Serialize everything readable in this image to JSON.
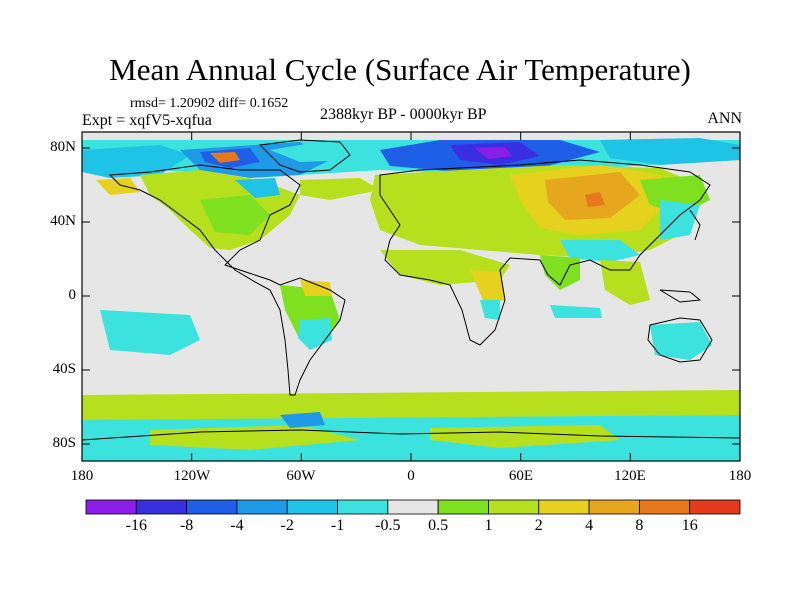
{
  "title": "Mean Annual Cycle (Surface Air Temperature)",
  "stats": "rmsd= 1.20902  diff= 0.1652",
  "experiment": "Expt = xqfV5-xqfua",
  "period": "2388kyr BP - 0000kyr BP",
  "season": "ANN",
  "lat_labels": [
    "80N",
    "40N",
    "0",
    "40S",
    "80S"
  ],
  "lon_labels": [
    "180",
    "120W",
    "60W",
    "0",
    "60E",
    "120E",
    "180"
  ],
  "colorbar": {
    "labels": [
      "-16",
      "-8",
      "-4",
      "-2",
      "-1",
      "-0.5",
      "0.5",
      "1",
      "2",
      "4",
      "8",
      "16"
    ],
    "colors": [
      "#8a1ee8",
      "#3a2fe0",
      "#1f5fe8",
      "#1f9ae6",
      "#1fc3e6",
      "#3ce2de",
      "#e6e6e6",
      "#7ee01e",
      "#b6e01e",
      "#e6d21e",
      "#e6a61e",
      "#e6781e",
      "#e63a1e"
    ]
  },
  "colors": {
    "land_outline": "#000000",
    "neutral": "#e6e6e6"
  }
}
